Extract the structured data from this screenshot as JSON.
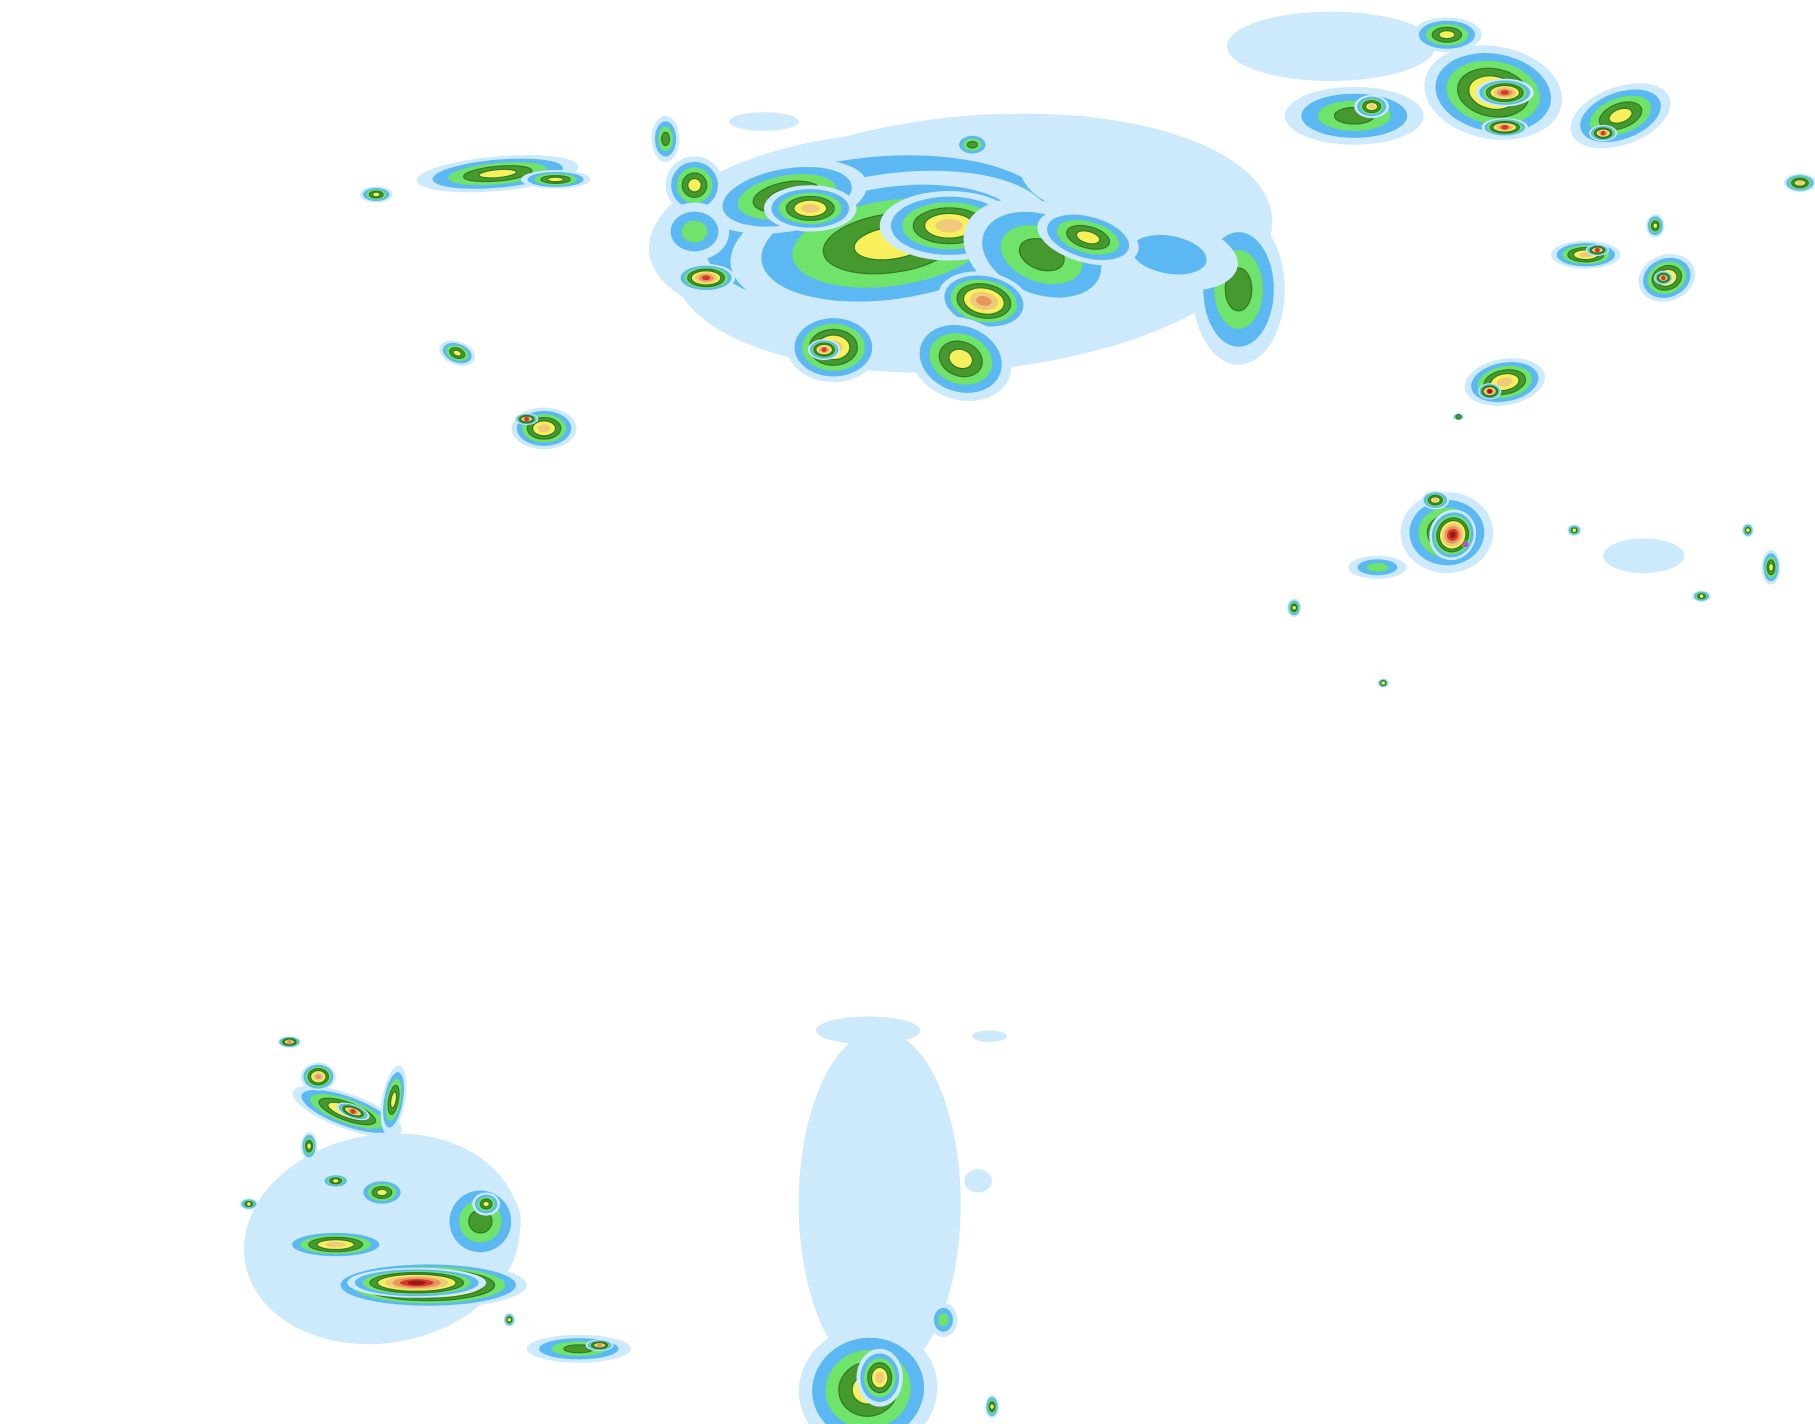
{
  "map": {
    "kind": "precipitation radar overlay",
    "background": "#ffffff",
    "intensity_palette": {
      "very_light": "#cdeafd",
      "light": "#5cb8f2",
      "light_moderate": "#6fe36a",
      "moderate": "#45992f",
      "moderate_heavy": "#f7f05c",
      "heavy": "#f1c97a",
      "very_heavy": "#e8955c",
      "intense": "#d7382a",
      "extreme": "#981a14",
      "hail": "#e040e0"
    }
  }
}
